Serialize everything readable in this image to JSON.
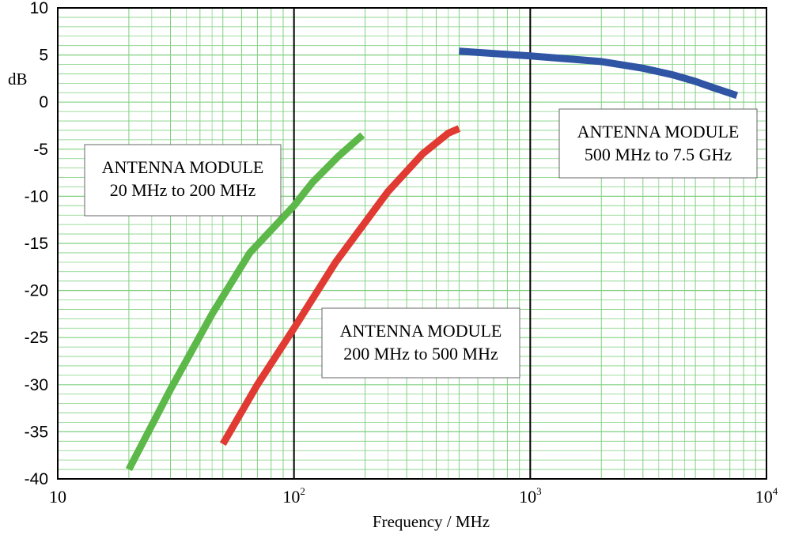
{
  "chart_data": {
    "type": "line",
    "xscale": "log",
    "xlim": [
      10,
      10000
    ],
    "ylim": [
      -40,
      10
    ],
    "yticks": [
      10,
      5,
      0,
      -5,
      -10,
      -15,
      -20,
      -25,
      -30,
      -35,
      -40
    ],
    "xticks": [
      {
        "value": 10,
        "base": "10",
        "exp": ""
      },
      {
        "value": 100,
        "base": "10",
        "exp": "2"
      },
      {
        "value": 1000,
        "base": "10",
        "exp": "3"
      },
      {
        "value": 10000,
        "base": "10",
        "exp": "4"
      }
    ],
    "xlabel": "Frequency / MHz",
    "ylabel": "dB",
    "grid": true,
    "grid_color": "#7fd07f",
    "major_grid_color": "#000000",
    "series": [
      {
        "color": "#5cb848",
        "x": [
          20,
          30,
          45,
          65,
          100,
          120,
          155,
          195
        ],
        "y": [
          -39,
          -30.5,
          -22.5,
          -16,
          -11,
          -8.5,
          -5.7,
          -3.5
        ]
      },
      {
        "color": "#e03a32",
        "x": [
          50,
          70,
          100,
          150,
          250,
          350,
          450,
          500
        ],
        "y": [
          -36.3,
          -30,
          -24,
          -17,
          -9.5,
          -5.5,
          -3.3,
          -2.8
        ]
      },
      {
        "color": "#2f55a4",
        "x": [
          500,
          1000,
          2000,
          3000,
          4000,
          5000,
          6000,
          7500
        ],
        "y": [
          5.4,
          4.9,
          4.3,
          3.6,
          2.9,
          2.2,
          1.5,
          0.7
        ]
      }
    ],
    "annotations": [
      {
        "lines": [
          "ANTENNA MODULE",
          "20 MHz to 200 MHz"
        ]
      },
      {
        "lines": [
          "ANTENNA MODULE",
          "200 MHz to 500 MHz"
        ]
      },
      {
        "lines": [
          "ANTENNA MODULE",
          "500 MHz to 7.5 GHz"
        ]
      }
    ]
  }
}
